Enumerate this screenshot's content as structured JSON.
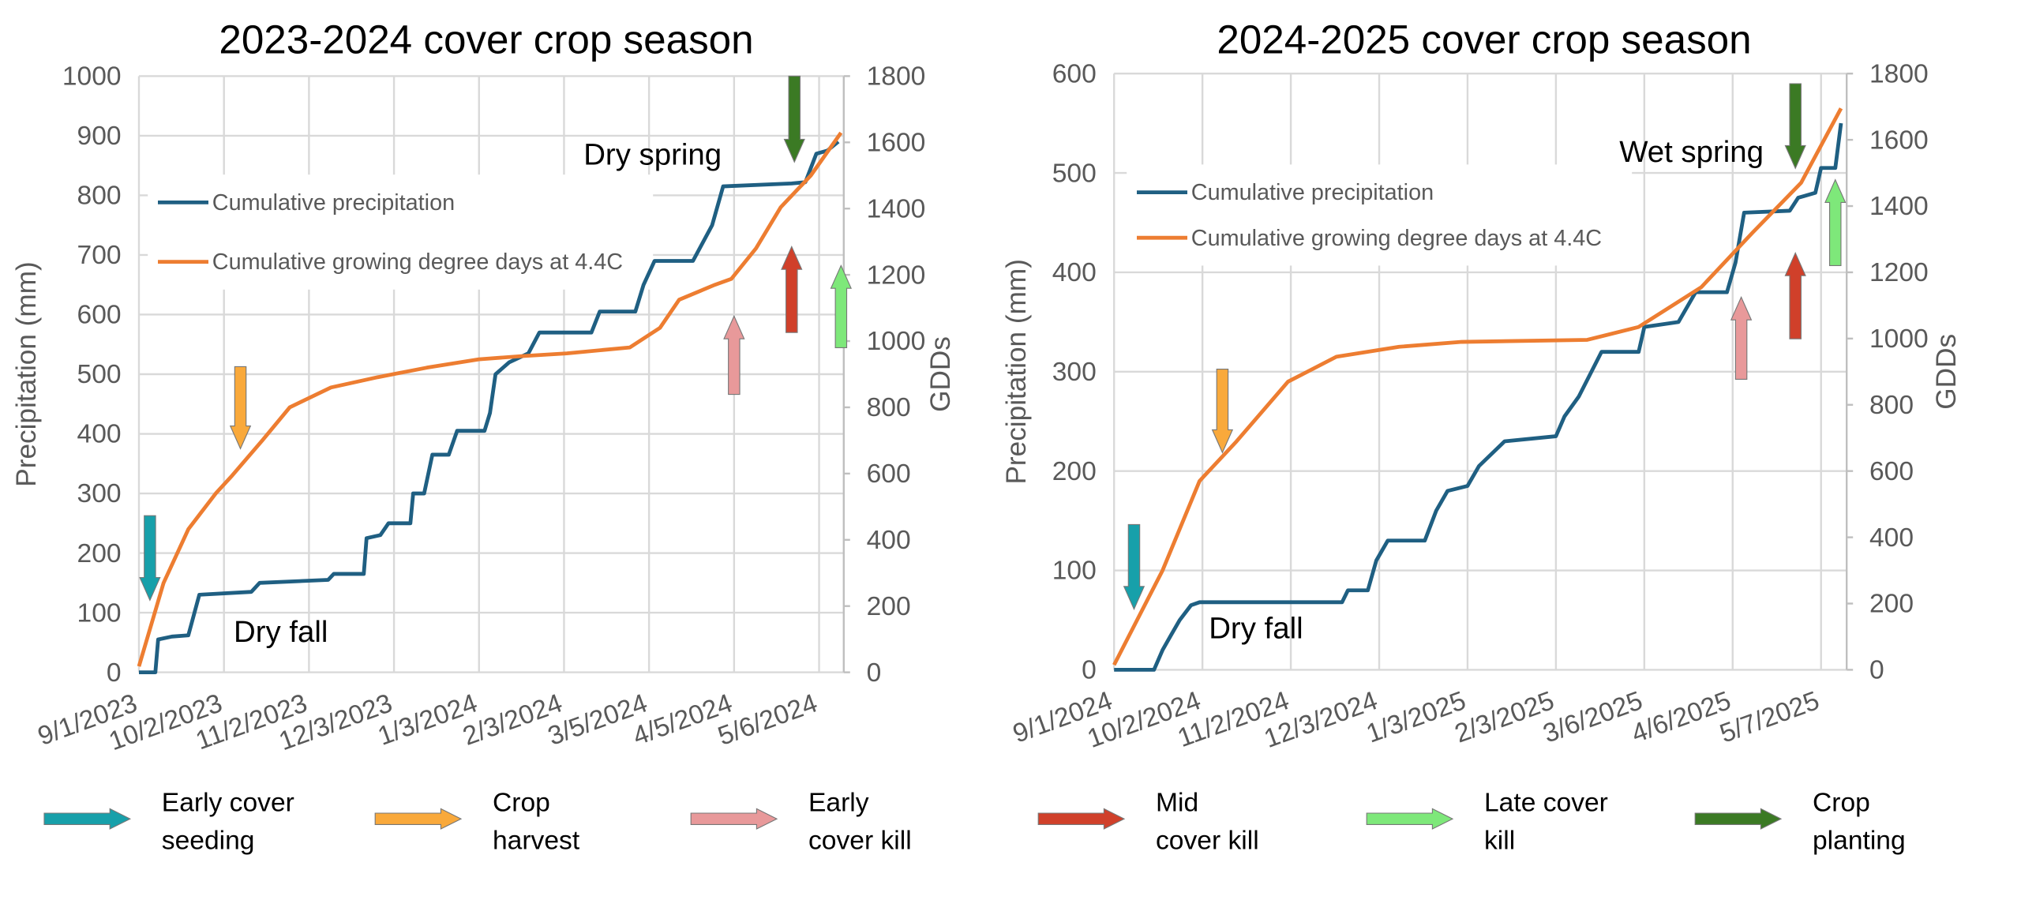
{
  "colors": {
    "precip": "#1f5f82",
    "gdd": "#ed7d31",
    "grid": "#d9d9d9",
    "early_seeding": "#17a0aa",
    "crop_harvest": "#f9a93b",
    "early_kill": "#e8999a",
    "mid_kill": "#d0402a",
    "late_kill": "#7ee87a",
    "crop_planting": "#3b7a24"
  },
  "bottom_legend": [
    {
      "key": "early_seeding",
      "line1": "Early cover",
      "line2": "seeding"
    },
    {
      "key": "crop_harvest",
      "line1": "Crop",
      "line2": "harvest"
    },
    {
      "key": "early_kill",
      "line1": "Early",
      "line2": "cover kill"
    },
    {
      "key": "mid_kill",
      "line1": "Mid",
      "line2": "cover kill"
    },
    {
      "key": "late_kill",
      "line1": "Late cover",
      "line2": "kill"
    },
    {
      "key": "crop_planting",
      "line1": "Crop",
      "line2": "planting"
    }
  ],
  "chart_data": [
    {
      "type": "line",
      "title": "2023-2024 cover crop season",
      "ylabel": "Precipitation (mm)",
      "y2label": "GDDs",
      "ylim": [
        0,
        1000
      ],
      "yticks": [
        0,
        100,
        200,
        300,
        400,
        500,
        600,
        700,
        800,
        900,
        1000
      ],
      "y2lim": [
        0,
        1800
      ],
      "y2ticks": [
        0,
        200,
        400,
        600,
        800,
        1000,
        1200,
        1400,
        1600,
        1800
      ],
      "xlim_days": [
        0,
        257
      ],
      "xticks": [
        {
          "day": 0,
          "label": "9/1/2023"
        },
        {
          "day": 31,
          "label": "10/2/2023"
        },
        {
          "day": 62,
          "label": "11/2/2023"
        },
        {
          "day": 93,
          "label": "12/3/2023"
        },
        {
          "day": 124,
          "label": "1/3/2024"
        },
        {
          "day": 155,
          "label": "2/3/2024"
        },
        {
          "day": 186,
          "label": "3/5/2024"
        },
        {
          "day": 217,
          "label": "4/5/2024"
        },
        {
          "day": 248,
          "label": "5/6/2024"
        }
      ],
      "legend": [
        "Cumulative precipitation",
        "Cumulative growing degree days at 4.4C"
      ],
      "annotations": [
        "Dry fall",
        "Dry spring"
      ],
      "series": [
        {
          "name": "Cumulative precipitation",
          "axis": "left",
          "points": [
            [
              0,
              0
            ],
            [
              6,
              0
            ],
            [
              7,
              55
            ],
            [
              12,
              60
            ],
            [
              18,
              62
            ],
            [
              22,
              130
            ],
            [
              41,
              135
            ],
            [
              44,
              150
            ],
            [
              69,
              155
            ],
            [
              71,
              165
            ],
            [
              82,
              165
            ],
            [
              83,
              225
            ],
            [
              88,
              230
            ],
            [
              91,
              250
            ],
            [
              99,
              250
            ],
            [
              100,
              300
            ],
            [
              104,
              300
            ],
            [
              107,
              365
            ],
            [
              113,
              365
            ],
            [
              116,
              405
            ],
            [
              126,
              405
            ],
            [
              128,
              435
            ],
            [
              130,
              500
            ],
            [
              135,
              520
            ],
            [
              142,
              535
            ],
            [
              146,
              570
            ],
            [
              165,
              570
            ],
            [
              168,
              605
            ],
            [
              181,
              605
            ],
            [
              184,
              650
            ],
            [
              188,
              690
            ],
            [
              202,
              690
            ],
            [
              209,
              750
            ],
            [
              213,
              815
            ],
            [
              238,
              820
            ],
            [
              243,
              822
            ],
            [
              247,
              870
            ],
            [
              251,
              875
            ],
            [
              255,
              890
            ]
          ]
        },
        {
          "name": "Cumulative growing degree days at 4.4C",
          "axis": "right",
          "points": [
            [
              0,
              18
            ],
            [
              9,
              270
            ],
            [
              18,
              432
            ],
            [
              28,
              540
            ],
            [
              34,
              594
            ],
            [
              45,
              700
            ],
            [
              55,
              800
            ],
            [
              70,
              860
            ],
            [
              87,
              891
            ],
            [
              105,
              920
            ],
            [
              124,
              945
            ],
            [
              140,
              955
            ],
            [
              156,
              963
            ],
            [
              179,
              981
            ],
            [
              190,
              1040
            ],
            [
              197,
              1125
            ],
            [
              210,
              1170
            ],
            [
              216,
              1188
            ],
            [
              225,
              1280
            ],
            [
              234,
              1404
            ],
            [
              245,
              1500
            ],
            [
              256,
              1629
            ]
          ]
        }
      ],
      "event_arrows": [
        {
          "key": "early_seeding",
          "day": 4,
          "direction": "down"
        },
        {
          "key": "crop_harvest",
          "day": 37,
          "direction": "down"
        },
        {
          "key": "early_kill",
          "day": 217,
          "direction": "up"
        },
        {
          "key": "mid_kill",
          "day": 238,
          "direction": "up"
        },
        {
          "key": "late_kill",
          "day": 256,
          "direction": "up"
        },
        {
          "key": "crop_planting",
          "day": 239,
          "direction": "down"
        }
      ]
    },
    {
      "type": "line",
      "title": "2024-2025 cover crop season",
      "ylabel": "Precipitation (mm)",
      "y2label": "GDDs",
      "ylim": [
        0,
        600
      ],
      "yticks": [
        0,
        100,
        200,
        300,
        400,
        500,
        600
      ],
      "y2lim": [
        0,
        1800
      ],
      "y2ticks": [
        0,
        200,
        400,
        600,
        800,
        1000,
        1200,
        1400,
        1600,
        1800
      ],
      "xlim_days": [
        0,
        257
      ],
      "xticks": [
        {
          "day": 0,
          "label": "9/1/2024"
        },
        {
          "day": 31,
          "label": "10/2/2024"
        },
        {
          "day": 62,
          "label": "11/2/2024"
        },
        {
          "day": 93,
          "label": "12/3/2024"
        },
        {
          "day": 124,
          "label": "1/3/2025"
        },
        {
          "day": 155,
          "label": "2/3/2025"
        },
        {
          "day": 186,
          "label": "3/6/2025"
        },
        {
          "day": 217,
          "label": "4/6/2025"
        },
        {
          "day": 248,
          "label": "5/7/2025"
        }
      ],
      "legend": [
        "Cumulative precipitation",
        "Cumulative growing degree days at 4.4C"
      ],
      "annotations": [
        "Dry fall",
        "Wet spring"
      ],
      "series": [
        {
          "name": "Cumulative precipitation",
          "axis": "left",
          "points": [
            [
              0,
              0
            ],
            [
              14,
              0
            ],
            [
              17,
              20
            ],
            [
              20,
              35
            ],
            [
              23,
              50
            ],
            [
              27,
              65
            ],
            [
              30,
              68
            ],
            [
              80,
              68
            ],
            [
              82,
              80
            ],
            [
              89,
              80
            ],
            [
              92,
              110
            ],
            [
              96,
              130
            ],
            [
              109,
              130
            ],
            [
              113,
              160
            ],
            [
              117,
              180
            ],
            [
              124,
              185
            ],
            [
              128,
              205
            ],
            [
              137,
              230
            ],
            [
              155,
              235
            ],
            [
              158,
              255
            ],
            [
              163,
              275
            ],
            [
              171,
              320
            ],
            [
              184,
              320
            ],
            [
              186,
              345
            ],
            [
              198,
              350
            ],
            [
              204,
              380
            ],
            [
              215,
              380
            ],
            [
              218,
              410
            ],
            [
              221,
              460
            ],
            [
              237,
              462
            ],
            [
              240,
              475
            ],
            [
              246,
              480
            ],
            [
              248,
              505
            ],
            [
              253,
              505
            ],
            [
              255,
              550
            ]
          ]
        },
        {
          "name": "Cumulative growing degree days at 4.4C",
          "axis": "right",
          "points": [
            [
              0,
              15
            ],
            [
              17,
              300
            ],
            [
              30,
              570
            ],
            [
              43,
              690
            ],
            [
              61,
              870
            ],
            [
              78,
              945
            ],
            [
              100,
              975
            ],
            [
              122,
              990
            ],
            [
              166,
              996
            ],
            [
              184,
              1035
            ],
            [
              206,
              1155
            ],
            [
              224,
              1320
            ],
            [
              241,
              1470
            ],
            [
              255,
              1695
            ]
          ]
        }
      ],
      "event_arrows": [
        {
          "key": "early_seeding",
          "day": 7,
          "direction": "down"
        },
        {
          "key": "crop_harvest",
          "day": 38,
          "direction": "down"
        },
        {
          "key": "early_kill",
          "day": 220,
          "direction": "up"
        },
        {
          "key": "mid_kill",
          "day": 239,
          "direction": "up"
        },
        {
          "key": "late_kill",
          "day": 253,
          "direction": "up"
        },
        {
          "key": "crop_planting",
          "day": 239,
          "direction": "down"
        }
      ]
    }
  ]
}
